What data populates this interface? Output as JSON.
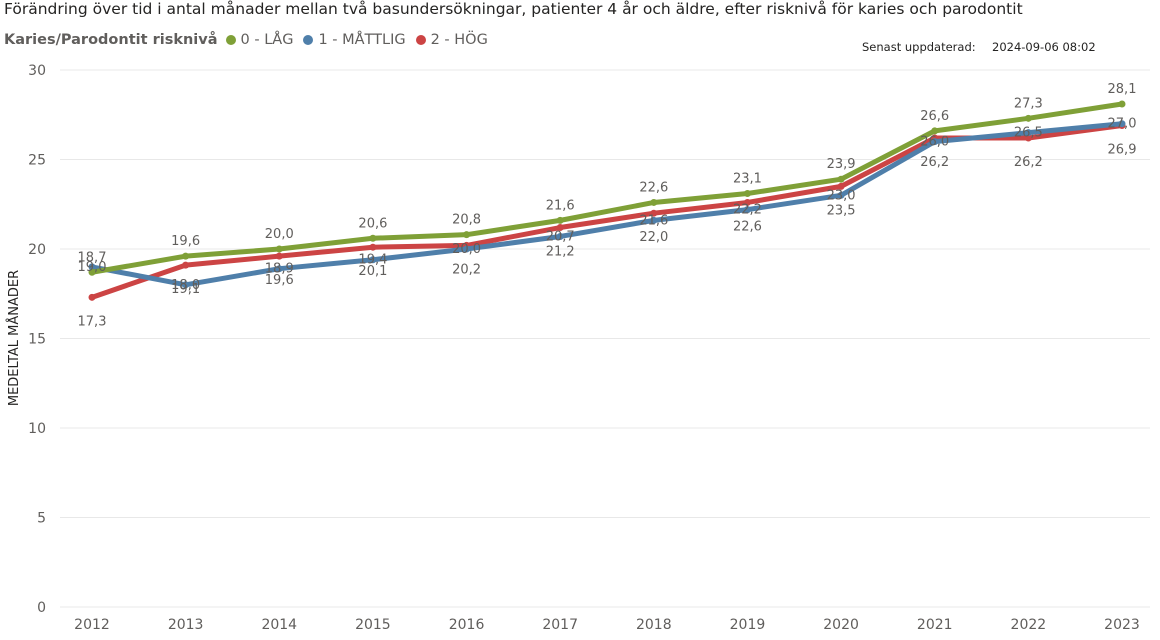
{
  "title": "Förändring över tid i antal månader mellan två basundersökningar, patienter 4 år och äldre, efter risknivå för karies och parodontit",
  "updated": {
    "label": "Senast uppdaterad:",
    "value": "2024-09-06 08:02"
  },
  "chart_data": {
    "type": "line",
    "title": "Förändring över tid i antal månader mellan två basundersökningar, patienter 4 år och äldre, efter risknivå för karies och parodontit",
    "xlabel": "",
    "ylabel": "MEDELTAL MÅNADER",
    "ylim": [
      0,
      30
    ],
    "yticks": [
      0,
      5,
      10,
      15,
      20,
      25,
      30
    ],
    "grid": true,
    "legend_title": "Karies/Parodontit risknivå",
    "legend_position": "top-left",
    "categories": [
      "2012",
      "2013",
      "2014",
      "2015",
      "2016",
      "2017",
      "2018",
      "2019",
      "2020",
      "2021",
      "2022",
      "2023"
    ],
    "series": [
      {
        "name": "0 - LÅG",
        "color": "#7fa037",
        "values": [
          18.7,
          19.6,
          20.0,
          20.6,
          20.8,
          21.6,
          22.6,
          23.1,
          23.9,
          26.6,
          27.3,
          28.1
        ]
      },
      {
        "name": "1 - MÅTTLIG",
        "color": "#4f7faa",
        "values": [
          19.0,
          18.0,
          18.9,
          19.4,
          20.0,
          20.7,
          21.6,
          22.2,
          23.0,
          26.0,
          26.5,
          27.0
        ]
      },
      {
        "name": "2 - HÖG",
        "color": "#cc4444",
        "values": [
          17.3,
          19.1,
          19.6,
          20.1,
          20.2,
          21.2,
          22.0,
          22.6,
          23.5,
          26.2,
          26.2,
          26.9
        ]
      }
    ]
  }
}
